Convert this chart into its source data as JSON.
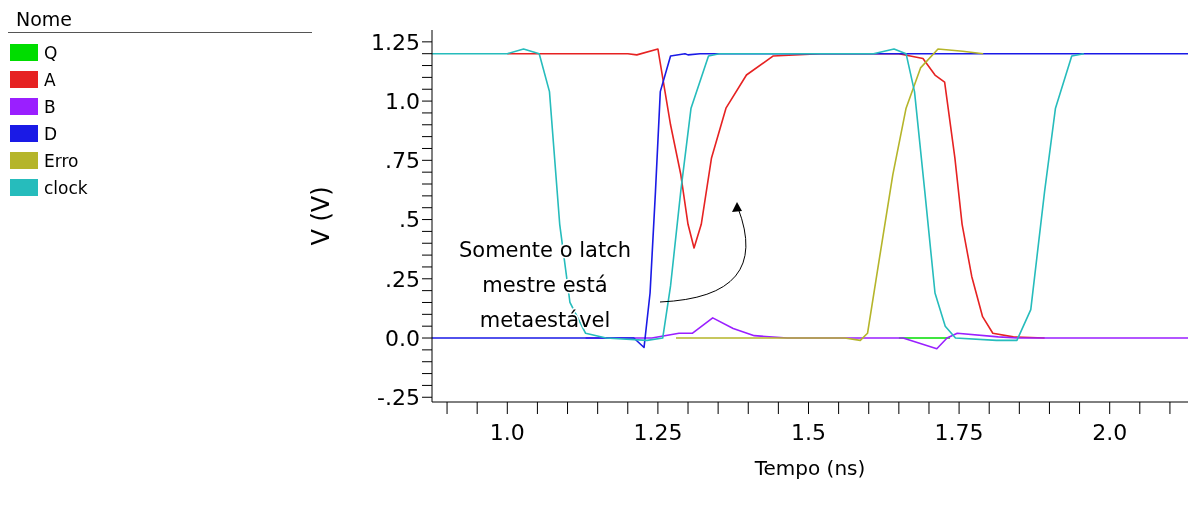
{
  "chart_data": {
    "type": "line",
    "xlabel": "Tempo (ns)",
    "ylabel": "V (V)",
    "legend_title": "Nome",
    "legend": "left",
    "marker": "none",
    "line_style": "solid",
    "xlim": [
      0.875,
      2.13
    ],
    "xticks": [
      {
        "value": 0.9,
        "label": null
      },
      {
        "value": 0.95,
        "label": null
      },
      {
        "value": 1.0,
        "label": "1.0"
      },
      {
        "value": 1.05,
        "label": null
      },
      {
        "value": 1.1,
        "label": null
      },
      {
        "value": 1.15,
        "label": null
      },
      {
        "value": 1.2,
        "label": null
      },
      1.25,
      {
        "value": 1.3,
        "label": null
      },
      {
        "value": 1.35,
        "label": null
      },
      {
        "value": 1.4,
        "label": null
      },
      {
        "value": 1.45,
        "label": null
      },
      1.5,
      {
        "value": 1.55,
        "label": null
      },
      {
        "value": 1.6,
        "label": null
      },
      {
        "value": 1.65,
        "label": null
      },
      {
        "value": 1.7,
        "label": null
      },
      1.75,
      {
        "value": 1.8,
        "label": null
      },
      {
        "value": 1.85,
        "label": null
      },
      {
        "value": 1.9,
        "label": null
      },
      {
        "value": 1.95,
        "label": null
      },
      {
        "value": 2.0,
        "label": "2.0"
      },
      {
        "value": 2.05,
        "label": null
      },
      {
        "value": 2.1,
        "label": null
      }
    ],
    "ylim": [
      -0.27,
      1.3
    ],
    "yticks": [
      {
        "value": -0.25,
        "label": "-.25"
      },
      {
        "value": -0.2,
        "label": null
      },
      {
        "value": -0.15,
        "label": null
      },
      {
        "value": -0.1,
        "label": null
      },
      {
        "value": -0.05,
        "label": null
      },
      {
        "value": 0,
        "label": "0.0"
      },
      {
        "value": 0.05,
        "label": null
      },
      {
        "value": 0.1,
        "label": null
      },
      {
        "value": 0.15,
        "label": null
      },
      {
        "value": 0.2,
        "label": null
      },
      {
        "value": 0.25,
        "label": ".25"
      },
      {
        "value": 0.3,
        "label": null
      },
      {
        "value": 0.35,
        "label": null
      },
      {
        "value": 0.4,
        "label": null
      },
      {
        "value": 0.45,
        "label": null
      },
      {
        "value": 0.5,
        "label": ".5"
      },
      {
        "value": 0.55,
        "label": null
      },
      {
        "value": 0.6,
        "label": null
      },
      {
        "value": 0.65,
        "label": null
      },
      {
        "value": 0.7,
        "label": null
      },
      {
        "value": 0.75,
        "label": ".75"
      },
      {
        "value": 0.8,
        "label": null
      },
      {
        "value": 0.85,
        "label": null
      },
      {
        "value": 0.9,
        "label": null
      },
      {
        "value": 0.95,
        "label": null
      },
      {
        "value": 1.0,
        "label": "1.0"
      },
      {
        "value": 1.05,
        "label": null
      },
      {
        "value": 1.1,
        "label": null
      },
      {
        "value": 1.15,
        "label": null
      },
      {
        "value": 1.2,
        "label": null
      },
      1.25
    ],
    "annotations": [
      "Somente o latch mestre está metaestável"
    ],
    "series": [
      {
        "name": "Q",
        "color": "#00dd00",
        "x": [
          1.65,
          1.735
        ],
        "values": [
          0,
          0
        ]
      },
      {
        "name": "A",
        "color": "#e62222",
        "x": [
          1.0,
          1.2,
          1.215,
          1.25,
          1.271,
          1.288,
          1.3,
          1.31,
          1.322,
          1.339,
          1.363,
          1.397,
          1.441,
          1.52,
          1.6,
          1.65,
          1.69,
          1.71,
          1.726,
          1.743,
          1.755,
          1.771,
          1.789,
          1.806,
          1.84,
          1.892
        ],
        "values": [
          1.2,
          1.2,
          1.195,
          1.22,
          0.9,
          0.69,
          0.48,
          0.38,
          0.48,
          0.76,
          0.97,
          1.11,
          1.19,
          1.2,
          1.2,
          1.2,
          1.18,
          1.11,
          1.08,
          0.76,
          0.48,
          0.26,
          0.09,
          0.02,
          0.005,
          0
        ]
      },
      {
        "name": "B",
        "color": "#9a1fff",
        "x": [
          1.13,
          1.23,
          1.24,
          1.285,
          1.307,
          1.341,
          1.375,
          1.41,
          1.465,
          1.6,
          1.657,
          1.713,
          1.73,
          1.747,
          1.815,
          1.85,
          2.13
        ],
        "values": [
          0,
          0,
          0,
          0.02,
          0.02,
          0.085,
          0.04,
          0.01,
          0,
          0,
          0,
          -0.045,
          0,
          0.02,
          0.005,
          0,
          0
        ]
      },
      {
        "name": "D",
        "color": "#1a1ae6",
        "x": [
          0.875,
          1.2,
          1.21,
          1.227,
          1.237,
          1.246,
          1.254,
          1.271,
          1.295,
          1.3,
          1.32,
          2.13
        ],
        "values": [
          0,
          0,
          0,
          -0.04,
          0.19,
          0.62,
          1.04,
          1.19,
          1.2,
          1.195,
          1.2,
          1.2
        ]
      },
      {
        "name": "Erro",
        "color": "#b5b52a",
        "x": [
          1.28,
          1.56,
          1.586,
          1.598,
          1.618,
          1.64,
          1.662,
          1.686,
          1.715,
          1.756,
          1.79
        ],
        "values": [
          0,
          0,
          -0.01,
          0.02,
          0.34,
          0.69,
          0.97,
          1.14,
          1.22,
          1.21,
          1.2
        ]
      },
      {
        "name": "clock",
        "color": "#26bcbc",
        "x": [
          0.875,
          1.0,
          1.027,
          1.053,
          1.07,
          1.087,
          1.104,
          1.13,
          1.164,
          1.232,
          1.258,
          1.271,
          1.288,
          1.305,
          1.334,
          1.352,
          1.608,
          1.642,
          1.662,
          1.676,
          1.693,
          1.71,
          1.727,
          1.744,
          1.812,
          1.846,
          1.869,
          1.892,
          1.91,
          1.937,
          1.957
        ],
        "values": [
          1.2,
          1.2,
          1.22,
          1.2,
          1.04,
          0.48,
          0.15,
          0.02,
          0,
          -0.01,
          0,
          0.22,
          0.62,
          0.97,
          1.19,
          1.2,
          1.2,
          1.22,
          1.2,
          1.04,
          0.62,
          0.19,
          0.05,
          0,
          -0.01,
          -0.01,
          0.12,
          0.62,
          0.97,
          1.19,
          1.2
        ]
      }
    ]
  }
}
